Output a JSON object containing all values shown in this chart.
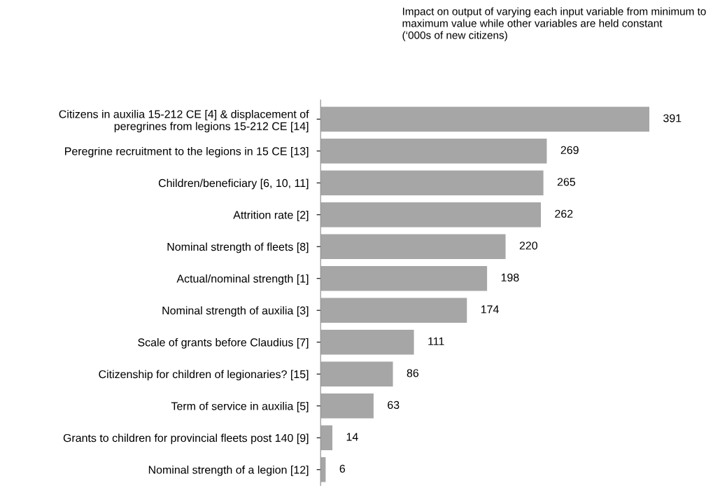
{
  "chart_data": {
    "type": "bar",
    "orientation": "horizontal",
    "title": "Impact on output of varying each input variable from minimum to\nmaximum value while other variables are held constant\n(‘000s of new citizens)",
    "categories": [
      "Citizens in auxilia 15-212 CE [4] & displacement of\nperegrines from legions 15-212 CE [14]",
      "Peregrine recruitment to the legions in 15 CE [13]",
      "Children/beneficiary [6, 10, 11]",
      "Attrition rate [2]",
      "Nominal strength of fleets [8]",
      "Actual/nominal strength [1]",
      "Nominal strength of auxilia [3]",
      "Scale of grants before Claudius [7]",
      "Citizenship for children of legionaries? [15]",
      "Term of service in auxilia [5]",
      "Grants to children for provincial fleets post 140 [9]",
      "Nominal strength of a legion [12]"
    ],
    "values": [
      391,
      269,
      265,
      262,
      220,
      198,
      174,
      111,
      86,
      63,
      14,
      6
    ],
    "color": "#a6a6a6",
    "data_labels": true,
    "tick_labels": "y"
  }
}
